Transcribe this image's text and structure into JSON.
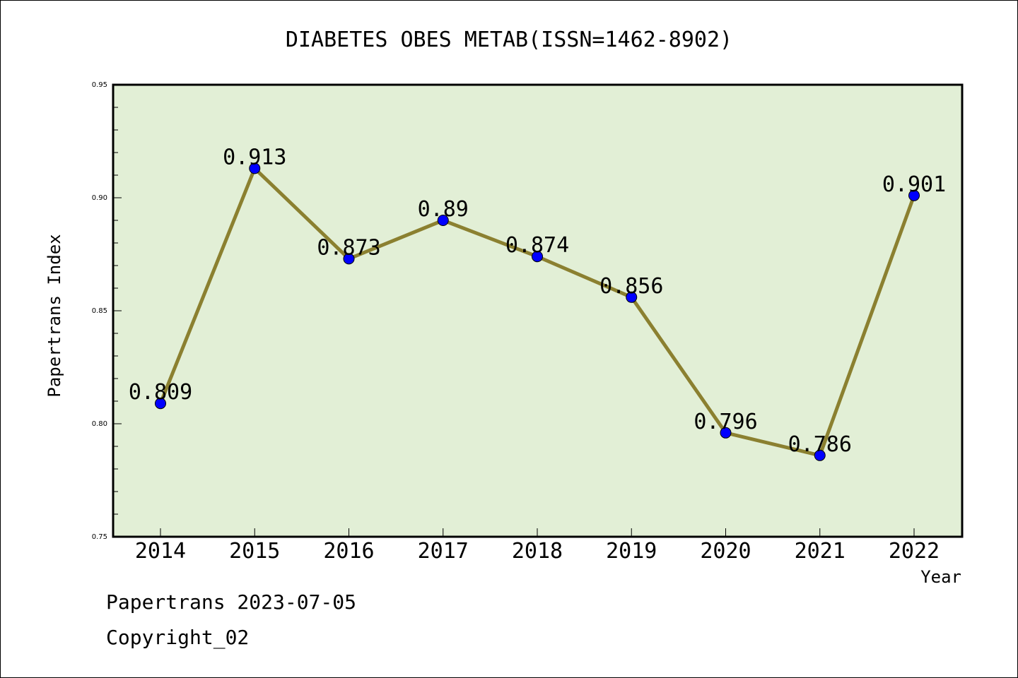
{
  "chart_data": {
    "type": "line",
    "title": "DIABETES OBES METAB(ISSN=1462-8902)",
    "xlabel": "Year",
    "ylabel": "Papertrans Index",
    "categories": [
      "2014",
      "2015",
      "2016",
      "2017",
      "2018",
      "2019",
      "2020",
      "2021",
      "2022"
    ],
    "values": [
      0.809,
      0.913,
      0.873,
      0.89,
      0.874,
      0.856,
      0.796,
      0.786,
      0.901
    ],
    "data_labels": [
      "0.809",
      "0.913",
      "0.873",
      "0.89",
      "0.874",
      "0.856",
      "0.796",
      "0.786",
      "0.901"
    ],
    "ylim": [
      0.75,
      0.95
    ],
    "yticks": [
      "0.75",
      "0.80",
      "0.85",
      "0.90",
      "0.95"
    ],
    "grid": false,
    "colors": {
      "plot_background": "#e2efd6",
      "line": "#8b8030",
      "marker": "#0000ff"
    }
  },
  "footer": {
    "date_line": "Papertrans 2023-07-05",
    "copyright_line": "Copyright_02"
  }
}
